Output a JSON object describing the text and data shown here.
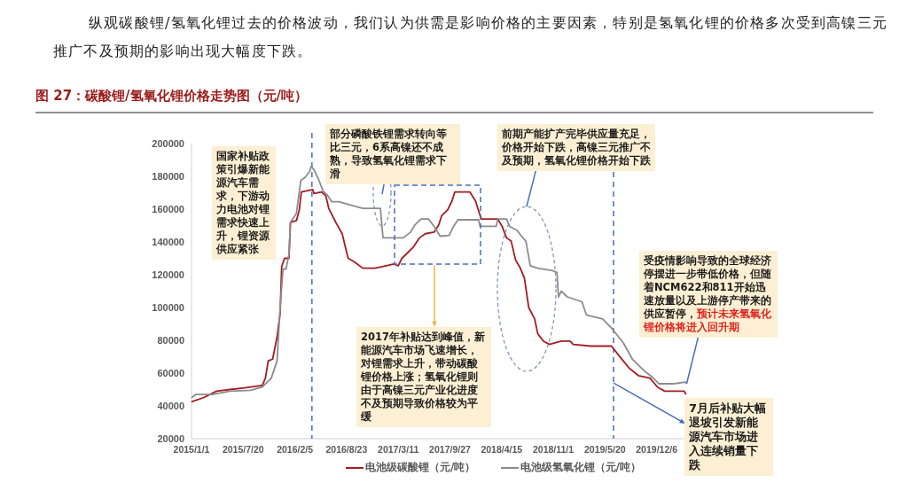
{
  "chart_data": {
    "type": "line",
    "title": "图 27：碳酸锂/氢氧化锂价格走势图（元/吨）",
    "annotations": [
      "纵观碳酸锂/氢氧化锂过去的价格波动，我们认为供需是影响价格的主要因素，特别是氢氧化锂的价格多次受到高镍三元推广不及预期的影响出现大幅度下跌。",
      "国家补贴政策引爆新能源汽车需求，下游动力电池对锂需求快速上升，锂资源供应紧张",
      "部分磷酸铁锂需求转向等比三元，6系高镍还不成熟，导致氢氧化锂需求下滑",
      "前期产能扩产完毕供应量充足，价格开始下跌，高镍三元推广不及预期，氢氧化锂价格开始下跌",
      "2017年补贴达到峰值，新能源汽车市场飞速增长，对锂需求上升，带动碳酸锂价格上涨；氢氧化锂则由于高镍三元产业化进度不及预期导致价格较为平缓",
      "受疫情影响导致的全球经济停摆进一步带低价格，但随着NCM622和811开始迅速放量以及上游停产带来的供应暂停，",
      {
        "text": "预计未来氢氧化锂价格将进入回升期",
        "x": "2020-03-31",
        "y": 53500
      },
      {
        "text": "7月后补贴大幅退坡引发新能源汽车市场进入连续销量下跌",
        "x": "2019-06-22",
        "y": 54000
      }
    ],
    "xlim": [
      "2015-01-01",
      "2020-04-19"
    ],
    "xticks": [
      {
        "value": "2015-01-01",
        "label": "2015/1/1"
      },
      {
        "value": "2015-07-20",
        "label": "2015/7/20"
      },
      {
        "value": "2016-02-05",
        "label": "2016/2/5"
      },
      {
        "value": "2016-08-23",
        "label": "2016/8/23"
      },
      {
        "value": "2017-03-11",
        "label": "2017/3/11"
      },
      {
        "value": "2017-09-27",
        "label": "2017/9/27"
      },
      {
        "value": "2018-04-15",
        "label": "2018/4/15"
      },
      {
        "value": "2018-11-01",
        "label": "2018/11/1"
      },
      {
        "value": "2019-05-20",
        "label": "2019/5/20"
      },
      {
        "value": "2019-12-06",
        "label": "2019/12/6"
      }
    ],
    "ylim": [
      20000,
      200000
    ],
    "yticks": [
      20000,
      40000,
      60000,
      80000,
      100000,
      120000,
      140000,
      160000,
      180000,
      200000
    ],
    "legend": "bottom",
    "grid": false,
    "ref_lines": [
      {
        "axis": "x",
        "value": "2016-04-11",
        "color": "#4a6fb5",
        "line_style": "dashed"
      },
      {
        "axis": "x",
        "value": "2019-06-22",
        "color": "#4a6fb5",
        "line_style": "dashed"
      }
    ],
    "series": [
      {
        "name": "电池级碳酸锂（元/吨）",
        "color": "#a31c24",
        "x": [
          "2015-01-01",
          "2015-02-16",
          "2015-04-08",
          "2015-05-30",
          "2015-07-26",
          "2015-10-02",
          "2015-10-14",
          "2015-10-25",
          "2015-11-11",
          "2015-11-28",
          "2015-12-10",
          "2015-12-16",
          "2015-12-27",
          "2016-01-13",
          "2016-01-19",
          "2016-02-11",
          "2016-02-22",
          "2016-03-01",
          "2016-04-14",
          "2016-04-19",
          "2016-05-18",
          "2016-06-04",
          "2016-06-15",
          "2016-07-14",
          "2016-08-06",
          "2016-08-29",
          "2016-09-21",
          "2016-10-25",
          "2016-12-10",
          "2017-01-24",
          "2017-02-22",
          "2017-03-11",
          "2017-03-25",
          "2017-04-17",
          "2017-05-09",
          "2017-06-01",
          "2017-06-24",
          "2017-07-28",
          "2017-08-15",
          "2017-08-26",
          "2017-09-18",
          "2017-10-05",
          "2017-10-16",
          "2017-12-13",
          "2018-01-04",
          "2018-01-22",
          "2018-01-27",
          "2018-03-31",
          "2018-04-17",
          "2018-05-04",
          "2018-05-22",
          "2018-06-08",
          "2018-06-25",
          "2018-07-12",
          "2018-07-29",
          "2018-08-21",
          "2018-09-02",
          "2018-09-24",
          "2018-10-17",
          "2018-12-02",
          "2019-01-05",
          "2019-01-17",
          "2019-03-26",
          "2019-06-14",
          "2019-07-19",
          "2019-08-22",
          "2019-09-26",
          "2019-11-10",
          "2019-12-09",
          "2020-01-06",
          "2020-03-21",
          "2020-03-29"
        ],
        "values": [
          42500,
          45000,
          49000,
          50000,
          51000,
          52500,
          57000,
          67500,
          68500,
          82000,
          96500,
          125000,
          130000,
          130000,
          152000,
          153000,
          159500,
          170500,
          172000,
          169500,
          170500,
          168000,
          160500,
          151500,
          145000,
          130000,
          128000,
          124000,
          124000,
          125500,
          126500,
          125500,
          130000,
          133500,
          137000,
          142500,
          145000,
          146000,
          150500,
          156000,
          159500,
          165000,
          170500,
          170500,
          165000,
          156000,
          154000,
          154000,
          149500,
          142500,
          140500,
          129000,
          124500,
          118000,
          100000,
          93000,
          84000,
          79500,
          77500,
          79500,
          79500,
          77500,
          76500,
          76500,
          69500,
          63000,
          58500,
          57000,
          51500,
          49000,
          49000,
          47000
        ]
      },
      {
        "name": "电池级氢氧化锂（元/吨）",
        "color": "#8c8c8c",
        "x": [
          "2015-01-01",
          "2015-01-18",
          "2015-03-22",
          "2015-05-30",
          "2015-08-18",
          "2015-10-02",
          "2015-11-06",
          "2015-11-28",
          "2015-12-10",
          "2015-12-21",
          "2016-01-02",
          "2016-01-13",
          "2016-01-19",
          "2016-02-11",
          "2016-02-28",
          "2016-03-16",
          "2016-04-02",
          "2016-04-08",
          "2016-04-19",
          "2016-05-06",
          "2016-05-24",
          "2016-06-10",
          "2016-06-27",
          "2016-07-25",
          "2016-08-17",
          "2016-10-25",
          "2017-01-01",
          "2017-01-11",
          "2017-03-11",
          "2017-03-30",
          "2017-04-28",
          "2017-05-15",
          "2017-06-07",
          "2017-07-06",
          "2017-07-28",
          "2017-08-20",
          "2017-09-24",
          "2017-10-11",
          "2017-10-28",
          "2018-01-16",
          "2018-01-22",
          "2018-03-25",
          "2018-03-31",
          "2018-05-04",
          "2018-05-16",
          "2018-06-14",
          "2018-07-01",
          "2018-07-18",
          "2018-08-04",
          "2018-09-02",
          "2018-10-29",
          "2018-11-15",
          "2018-11-21",
          "2018-12-02",
          "2018-12-25",
          "2019-02-20",
          "2019-03-09",
          "2019-05-11",
          "2019-06-14",
          "2019-07-30",
          "2019-09-03",
          "2019-10-18",
          "2019-11-16",
          "2019-12-15",
          "2020-02-10",
          "2020-03-26",
          "2020-03-31"
        ],
        "values": [
          45000,
          47000,
          47000,
          49000,
          49500,
          51500,
          57000,
          67500,
          100000,
          123500,
          123500,
          132500,
          152000,
          157500,
          177500,
          179500,
          183000,
          186000,
          184000,
          178500,
          171000,
          168500,
          164500,
          164500,
          163500,
          160500,
          160500,
          142500,
          142500,
          142500,
          146000,
          150500,
          154000,
          154000,
          149500,
          143500,
          144000,
          149500,
          153500,
          153500,
          149500,
          149500,
          154000,
          154000,
          149500,
          147000,
          143500,
          140500,
          125500,
          124000,
          122500,
          121500,
          106500,
          110000,
          106500,
          103500,
          95500,
          93000,
          87500,
          78500,
          68500,
          61500,
          58000,
          53500,
          53500,
          54500,
          53500
        ]
      }
    ]
  }
}
